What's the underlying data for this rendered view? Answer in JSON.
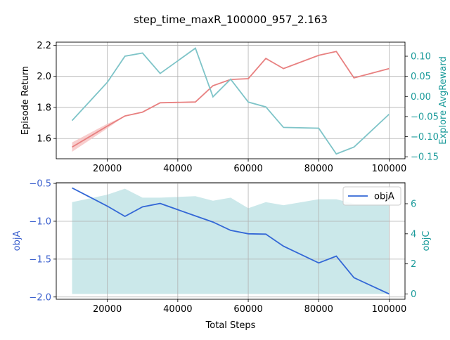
{
  "title": "step_time_maxR_100000_957_2.163",
  "colors": {
    "return": "#e88080",
    "return_band": "#f6c0c0",
    "explore": "#7ec4c8",
    "objA": "#3367d6",
    "objC_fill": "#a8d8dc",
    "teal_axis": "#1a9a9a",
    "blue_axis": "#3a5fcd"
  },
  "chart_data": [
    {
      "type": "line",
      "x": [
        10000,
        20000,
        25000,
        30000,
        35000,
        45000,
        50000,
        55000,
        60000,
        65000,
        70000,
        80000,
        85000,
        90000,
        100000
      ],
      "xlim": [
        5500,
        104500
      ],
      "grid": true,
      "ylabel": "Episode Return",
      "ylim": [
        1.47,
        2.22
      ],
      "yticks": [
        1.6,
        1.8,
        2.0,
        2.2
      ],
      "y2label": "Explore AvgReward",
      "y2lim": [
        -0.155,
        0.135
      ],
      "y2ticks": [
        -0.15,
        -0.1,
        -0.05,
        0.0,
        0.05,
        0.1
      ],
      "xticks": [
        20000,
        40000,
        60000,
        80000,
        100000
      ],
      "series": [
        {
          "axis": "left",
          "values": [
            1.545,
            1.68,
            1.745,
            1.77,
            1.83,
            1.835,
            1.94,
            1.98,
            1.985,
            2.115,
            2.05,
            2.135,
            2.16,
            1.99,
            2.05
          ],
          "band": 0.03
        },
        {
          "axis": "right",
          "values": [
            -0.06,
            0.035,
            0.1,
            0.108,
            0.057,
            0.12,
            -0.001,
            0.043,
            -0.014,
            -0.026,
            -0.077,
            -0.079,
            -0.143,
            -0.126,
            -0.044
          ]
        }
      ]
    },
    {
      "type": "line",
      "x": [
        10000,
        20000,
        25000,
        30000,
        35000,
        45000,
        50000,
        55000,
        60000,
        65000,
        70000,
        80000,
        85000,
        90000,
        100000
      ],
      "xlim": [
        5500,
        104500
      ],
      "grid": true,
      "xlabel": "Total Steps",
      "ylabel": "objA",
      "ylim": [
        -2.03,
        -0.49
      ],
      "yticks": [
        -2.0,
        -1.5,
        -1.0,
        -0.5
      ],
      "y2label": "objC",
      "y2lim": [
        -0.35,
        7.4
      ],
      "y2ticks": [
        0,
        2,
        4,
        6
      ],
      "xticks": [
        20000,
        40000,
        60000,
        80000,
        100000
      ],
      "legend": {
        "position": "top-right",
        "entries": [
          "objA"
        ]
      },
      "series": [
        {
          "name": "objA",
          "axis": "left",
          "values": [
            -0.56,
            -0.8,
            -0.935,
            -0.81,
            -0.765,
            -0.93,
            -1.01,
            -1.12,
            -1.165,
            -1.17,
            -1.33,
            -1.55,
            -1.46,
            -1.745,
            -1.96
          ]
        },
        {
          "axis": "right",
          "fill": true,
          "values": [
            6.1,
            6.6,
            7.0,
            6.4,
            6.4,
            6.5,
            6.2,
            6.4,
            5.7,
            6.1,
            5.9,
            6.3,
            6.3,
            6.0,
            6.0
          ]
        }
      ]
    }
  ]
}
